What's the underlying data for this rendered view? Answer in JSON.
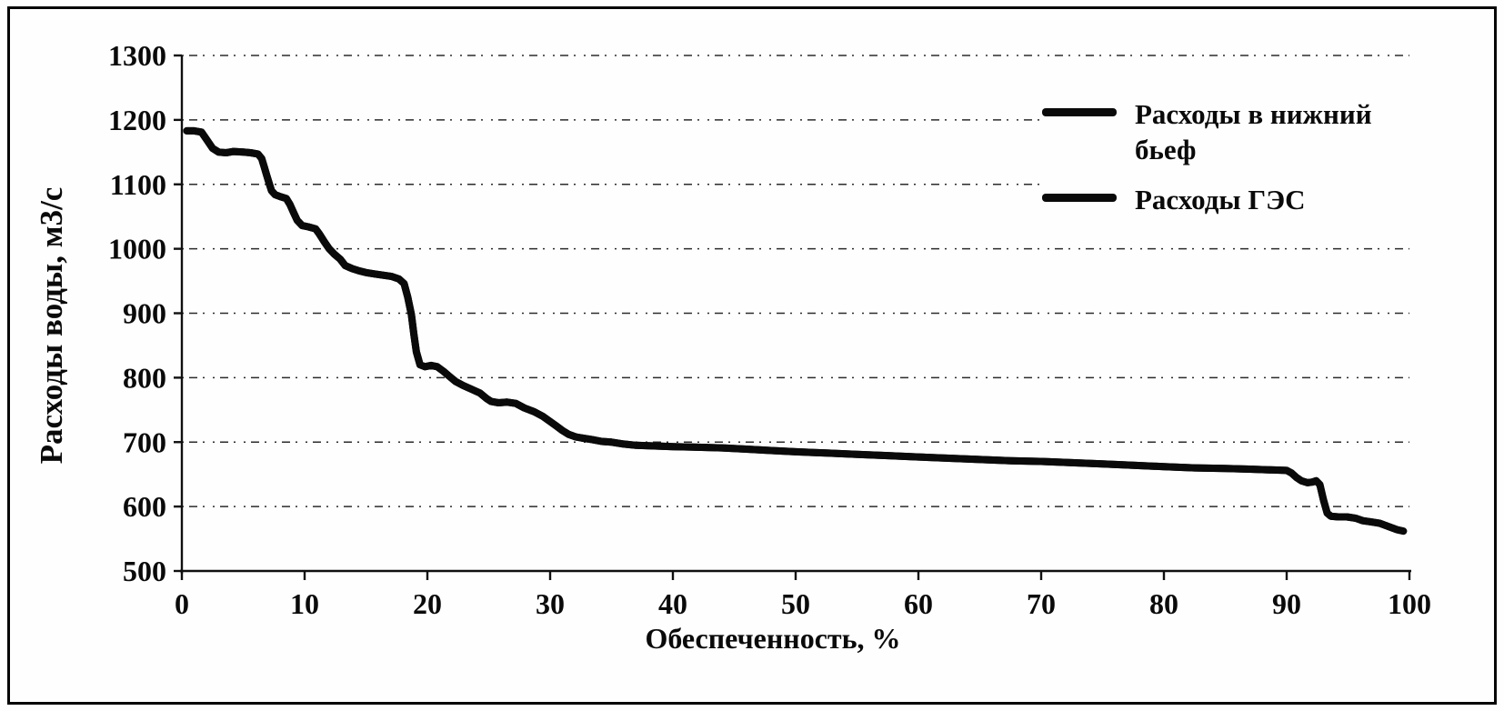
{
  "figure": {
    "background": "#fefefe",
    "border_color": "#050505"
  },
  "chart_data": {
    "type": "line",
    "title": "",
    "xlabel": "Обеспеченность, %",
    "ylabel": "Расходы воды, м3/с",
    "xlim": [
      0,
      100
    ],
    "ylim": [
      500,
      1300
    ],
    "x_ticks": [
      0,
      10,
      20,
      30,
      40,
      50,
      60,
      70,
      80,
      90,
      100
    ],
    "y_ticks": [
      500,
      600,
      700,
      800,
      900,
      1000,
      1100,
      1200,
      1300
    ],
    "grid": "horizontal dotted gridlines at each y tick",
    "legend_position": "inside top-right",
    "line_color": "#0a0a0a",
    "line_width": 8,
    "series": [
      {
        "name": "Расходы в нижний бьеф",
        "points": [
          [
            0.4,
            1183
          ],
          [
            1.0,
            1183
          ],
          [
            1.6,
            1181
          ],
          [
            2.0,
            1170
          ],
          [
            2.5,
            1156
          ],
          [
            3.0,
            1150
          ],
          [
            3.6,
            1149
          ],
          [
            4.2,
            1151
          ],
          [
            5.0,
            1150
          ],
          [
            5.6,
            1149
          ],
          [
            6.2,
            1147
          ],
          [
            6.5,
            1140
          ],
          [
            6.7,
            1128
          ],
          [
            6.9,
            1115
          ],
          [
            7.1,
            1102
          ],
          [
            7.3,
            1090
          ],
          [
            7.6,
            1084
          ],
          [
            8.0,
            1081
          ],
          [
            8.5,
            1078
          ],
          [
            8.8,
            1069
          ],
          [
            9.1,
            1056
          ],
          [
            9.4,
            1044
          ],
          [
            9.8,
            1036
          ],
          [
            10.3,
            1034
          ],
          [
            10.9,
            1031
          ],
          [
            11.2,
            1023
          ],
          [
            11.6,
            1011
          ],
          [
            12.0,
            1000
          ],
          [
            12.4,
            992
          ],
          [
            12.9,
            984
          ],
          [
            13.3,
            974
          ],
          [
            13.9,
            969
          ],
          [
            14.4,
            966
          ],
          [
            15.0,
            963
          ],
          [
            15.7,
            961
          ],
          [
            16.4,
            959
          ],
          [
            17.1,
            957
          ],
          [
            17.7,
            953
          ],
          [
            18.1,
            946
          ],
          [
            18.4,
            925
          ],
          [
            18.7,
            898
          ],
          [
            18.9,
            868
          ],
          [
            19.1,
            840
          ],
          [
            19.4,
            820
          ],
          [
            19.8,
            817
          ],
          [
            20.3,
            819
          ],
          [
            20.8,
            817
          ],
          [
            21.3,
            810
          ],
          [
            21.8,
            802
          ],
          [
            22.3,
            794
          ],
          [
            22.9,
            788
          ],
          [
            23.6,
            782
          ],
          [
            24.3,
            776
          ],
          [
            24.8,
            768
          ],
          [
            25.2,
            763
          ],
          [
            25.8,
            761
          ],
          [
            26.5,
            762
          ],
          [
            27.2,
            760
          ],
          [
            27.9,
            753
          ],
          [
            28.7,
            747
          ],
          [
            29.4,
            740
          ],
          [
            30.0,
            732
          ],
          [
            30.5,
            725
          ],
          [
            31.0,
            718
          ],
          [
            31.5,
            712
          ],
          [
            32.1,
            708
          ],
          [
            32.7,
            706
          ],
          [
            33.4,
            704
          ],
          [
            34.2,
            701
          ],
          [
            35.0,
            700
          ],
          [
            36.0,
            697
          ],
          [
            37.0,
            695
          ],
          [
            38.5,
            694
          ],
          [
            40.0,
            693
          ],
          [
            42.0,
            692
          ],
          [
            44.0,
            691
          ],
          [
            46.0,
            689
          ],
          [
            48.0,
            687
          ],
          [
            50.0,
            685
          ],
          [
            52.5,
            683
          ],
          [
            55.0,
            681
          ],
          [
            57.5,
            679
          ],
          [
            60.0,
            677
          ],
          [
            62.5,
            675
          ],
          [
            65.0,
            673
          ],
          [
            67.5,
            671
          ],
          [
            70.0,
            670
          ],
          [
            72.5,
            668
          ],
          [
            75.0,
            666
          ],
          [
            77.5,
            664
          ],
          [
            80.0,
            662
          ],
          [
            82.5,
            660
          ],
          [
            85.0,
            659
          ],
          [
            87.0,
            658
          ],
          [
            88.5,
            657
          ],
          [
            90.0,
            656
          ],
          [
            90.4,
            652
          ],
          [
            90.8,
            645
          ],
          [
            91.2,
            640
          ],
          [
            91.7,
            637
          ],
          [
            92.1,
            638
          ],
          [
            92.4,
            640
          ],
          [
            92.7,
            634
          ],
          [
            93.0,
            610
          ],
          [
            93.3,
            590
          ],
          [
            93.6,
            585
          ],
          [
            94.2,
            584
          ],
          [
            94.9,
            584
          ],
          [
            95.6,
            582
          ],
          [
            96.2,
            578
          ],
          [
            96.9,
            576
          ],
          [
            97.6,
            574
          ],
          [
            98.3,
            569
          ],
          [
            99.0,
            564
          ],
          [
            99.5,
            562
          ]
        ]
      },
      {
        "name": "Расходы ГЭС",
        "points": [
          [
            0.4,
            1183
          ],
          [
            1.0,
            1183
          ],
          [
            1.6,
            1181
          ],
          [
            2.0,
            1170
          ],
          [
            2.5,
            1156
          ],
          [
            3.0,
            1150
          ],
          [
            3.6,
            1149
          ],
          [
            4.2,
            1151
          ],
          [
            5.0,
            1150
          ],
          [
            5.6,
            1149
          ],
          [
            6.2,
            1147
          ],
          [
            6.5,
            1140
          ],
          [
            6.7,
            1128
          ],
          [
            6.9,
            1115
          ],
          [
            7.1,
            1102
          ],
          [
            7.3,
            1090
          ],
          [
            7.6,
            1084
          ],
          [
            8.0,
            1081
          ],
          [
            8.5,
            1078
          ],
          [
            8.8,
            1069
          ],
          [
            9.1,
            1056
          ],
          [
            9.4,
            1044
          ],
          [
            9.8,
            1036
          ],
          [
            10.3,
            1034
          ],
          [
            10.9,
            1031
          ],
          [
            11.2,
            1023
          ],
          [
            11.6,
            1011
          ],
          [
            12.0,
            1000
          ],
          [
            12.4,
            992
          ],
          [
            12.9,
            984
          ],
          [
            13.3,
            974
          ],
          [
            13.9,
            969
          ],
          [
            14.4,
            966
          ],
          [
            15.0,
            963
          ],
          [
            15.7,
            961
          ],
          [
            16.4,
            959
          ],
          [
            17.1,
            957
          ],
          [
            17.7,
            953
          ],
          [
            18.1,
            946
          ],
          [
            18.4,
            925
          ],
          [
            18.7,
            898
          ],
          [
            18.9,
            868
          ],
          [
            19.1,
            840
          ],
          [
            19.4,
            820
          ],
          [
            19.8,
            817
          ],
          [
            20.3,
            819
          ],
          [
            20.8,
            817
          ],
          [
            21.3,
            810
          ],
          [
            21.8,
            802
          ],
          [
            22.3,
            794
          ],
          [
            22.9,
            788
          ],
          [
            23.6,
            782
          ],
          [
            24.3,
            776
          ],
          [
            24.8,
            768
          ],
          [
            25.2,
            763
          ],
          [
            25.8,
            761
          ],
          [
            26.5,
            762
          ],
          [
            27.2,
            760
          ],
          [
            27.9,
            753
          ],
          [
            28.7,
            747
          ],
          [
            29.4,
            740
          ],
          [
            30.0,
            732
          ],
          [
            30.5,
            725
          ],
          [
            31.0,
            718
          ],
          [
            31.5,
            712
          ],
          [
            32.1,
            708
          ],
          [
            32.7,
            706
          ],
          [
            33.4,
            704
          ],
          [
            34.2,
            701
          ],
          [
            35.0,
            700
          ],
          [
            36.0,
            697
          ],
          [
            37.0,
            695
          ],
          [
            38.5,
            694
          ],
          [
            40.0,
            693
          ],
          [
            42.0,
            692
          ],
          [
            44.0,
            691
          ],
          [
            46.0,
            689
          ],
          [
            48.0,
            687
          ],
          [
            50.0,
            685
          ],
          [
            52.5,
            683
          ],
          [
            55.0,
            681
          ],
          [
            57.5,
            679
          ],
          [
            60.0,
            677
          ],
          [
            62.5,
            675
          ],
          [
            65.0,
            673
          ],
          [
            67.5,
            671
          ],
          [
            70.0,
            670
          ],
          [
            72.5,
            668
          ],
          [
            75.0,
            666
          ],
          [
            77.5,
            664
          ],
          [
            80.0,
            662
          ],
          [
            82.5,
            660
          ],
          [
            85.0,
            659
          ],
          [
            87.0,
            658
          ],
          [
            88.5,
            657
          ],
          [
            90.0,
            656
          ],
          [
            90.4,
            652
          ],
          [
            90.8,
            645
          ],
          [
            91.2,
            640
          ],
          [
            91.7,
            637
          ],
          [
            92.1,
            638
          ],
          [
            92.4,
            640
          ],
          [
            92.7,
            634
          ],
          [
            93.0,
            610
          ],
          [
            93.3,
            590
          ],
          [
            93.6,
            585
          ],
          [
            94.2,
            584
          ],
          [
            94.9,
            584
          ],
          [
            95.6,
            582
          ],
          [
            96.2,
            578
          ],
          [
            96.9,
            576
          ],
          [
            97.6,
            574
          ],
          [
            98.3,
            569
          ],
          [
            99.0,
            564
          ],
          [
            99.5,
            562
          ]
        ]
      }
    ]
  }
}
